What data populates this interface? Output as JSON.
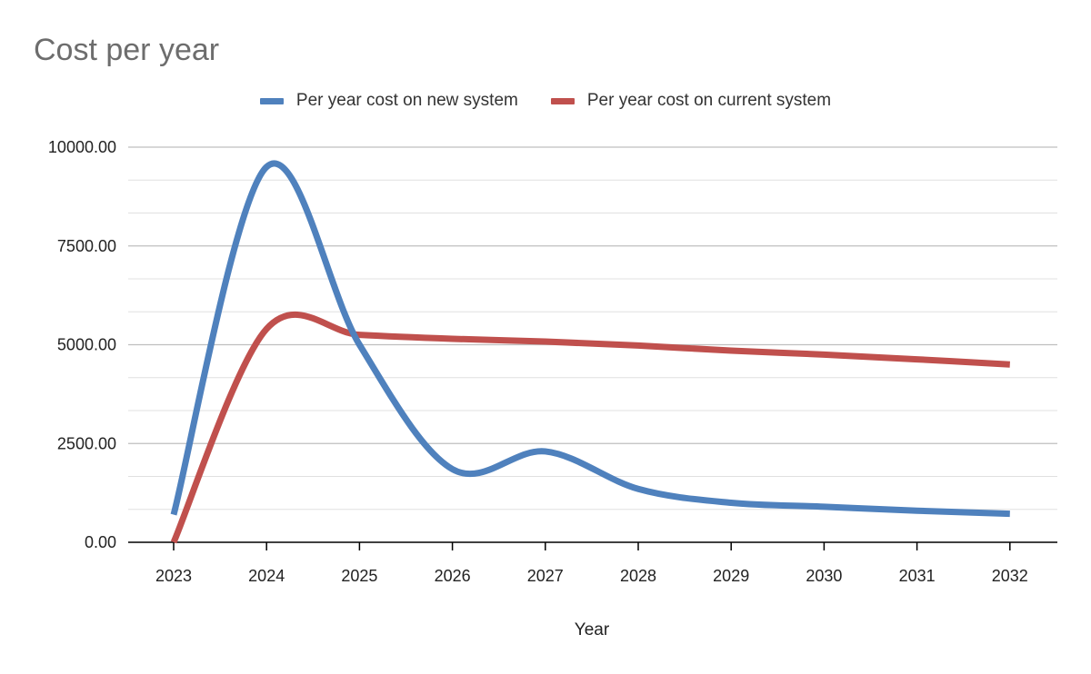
{
  "chart_data": {
    "type": "line",
    "title": "Cost per year",
    "xlabel": "Year",
    "ylabel": "",
    "categories": [
      "2023",
      "2024",
      "2025",
      "2026",
      "2027",
      "2028",
      "2029",
      "2030",
      "2031",
      "2032"
    ],
    "ylim": [
      0,
      10000
    ],
    "yticks": [
      "0.00",
      "2500.00",
      "5000.00",
      "7500.00",
      "10000.00"
    ],
    "grid": true,
    "legend_position": "top",
    "series": [
      {
        "name": "Per year cost on new system",
        "color": "#4f81bd",
        "values": [
          700,
          9500,
          5000,
          1850,
          2300,
          1350,
          1000,
          900,
          800,
          720
        ]
      },
      {
        "name": "Per year cost on current system",
        "color": "#c0504d",
        "values": [
          0,
          5400,
          5250,
          5150,
          5080,
          4980,
          4850,
          4750,
          4630,
          4500
        ]
      }
    ]
  }
}
